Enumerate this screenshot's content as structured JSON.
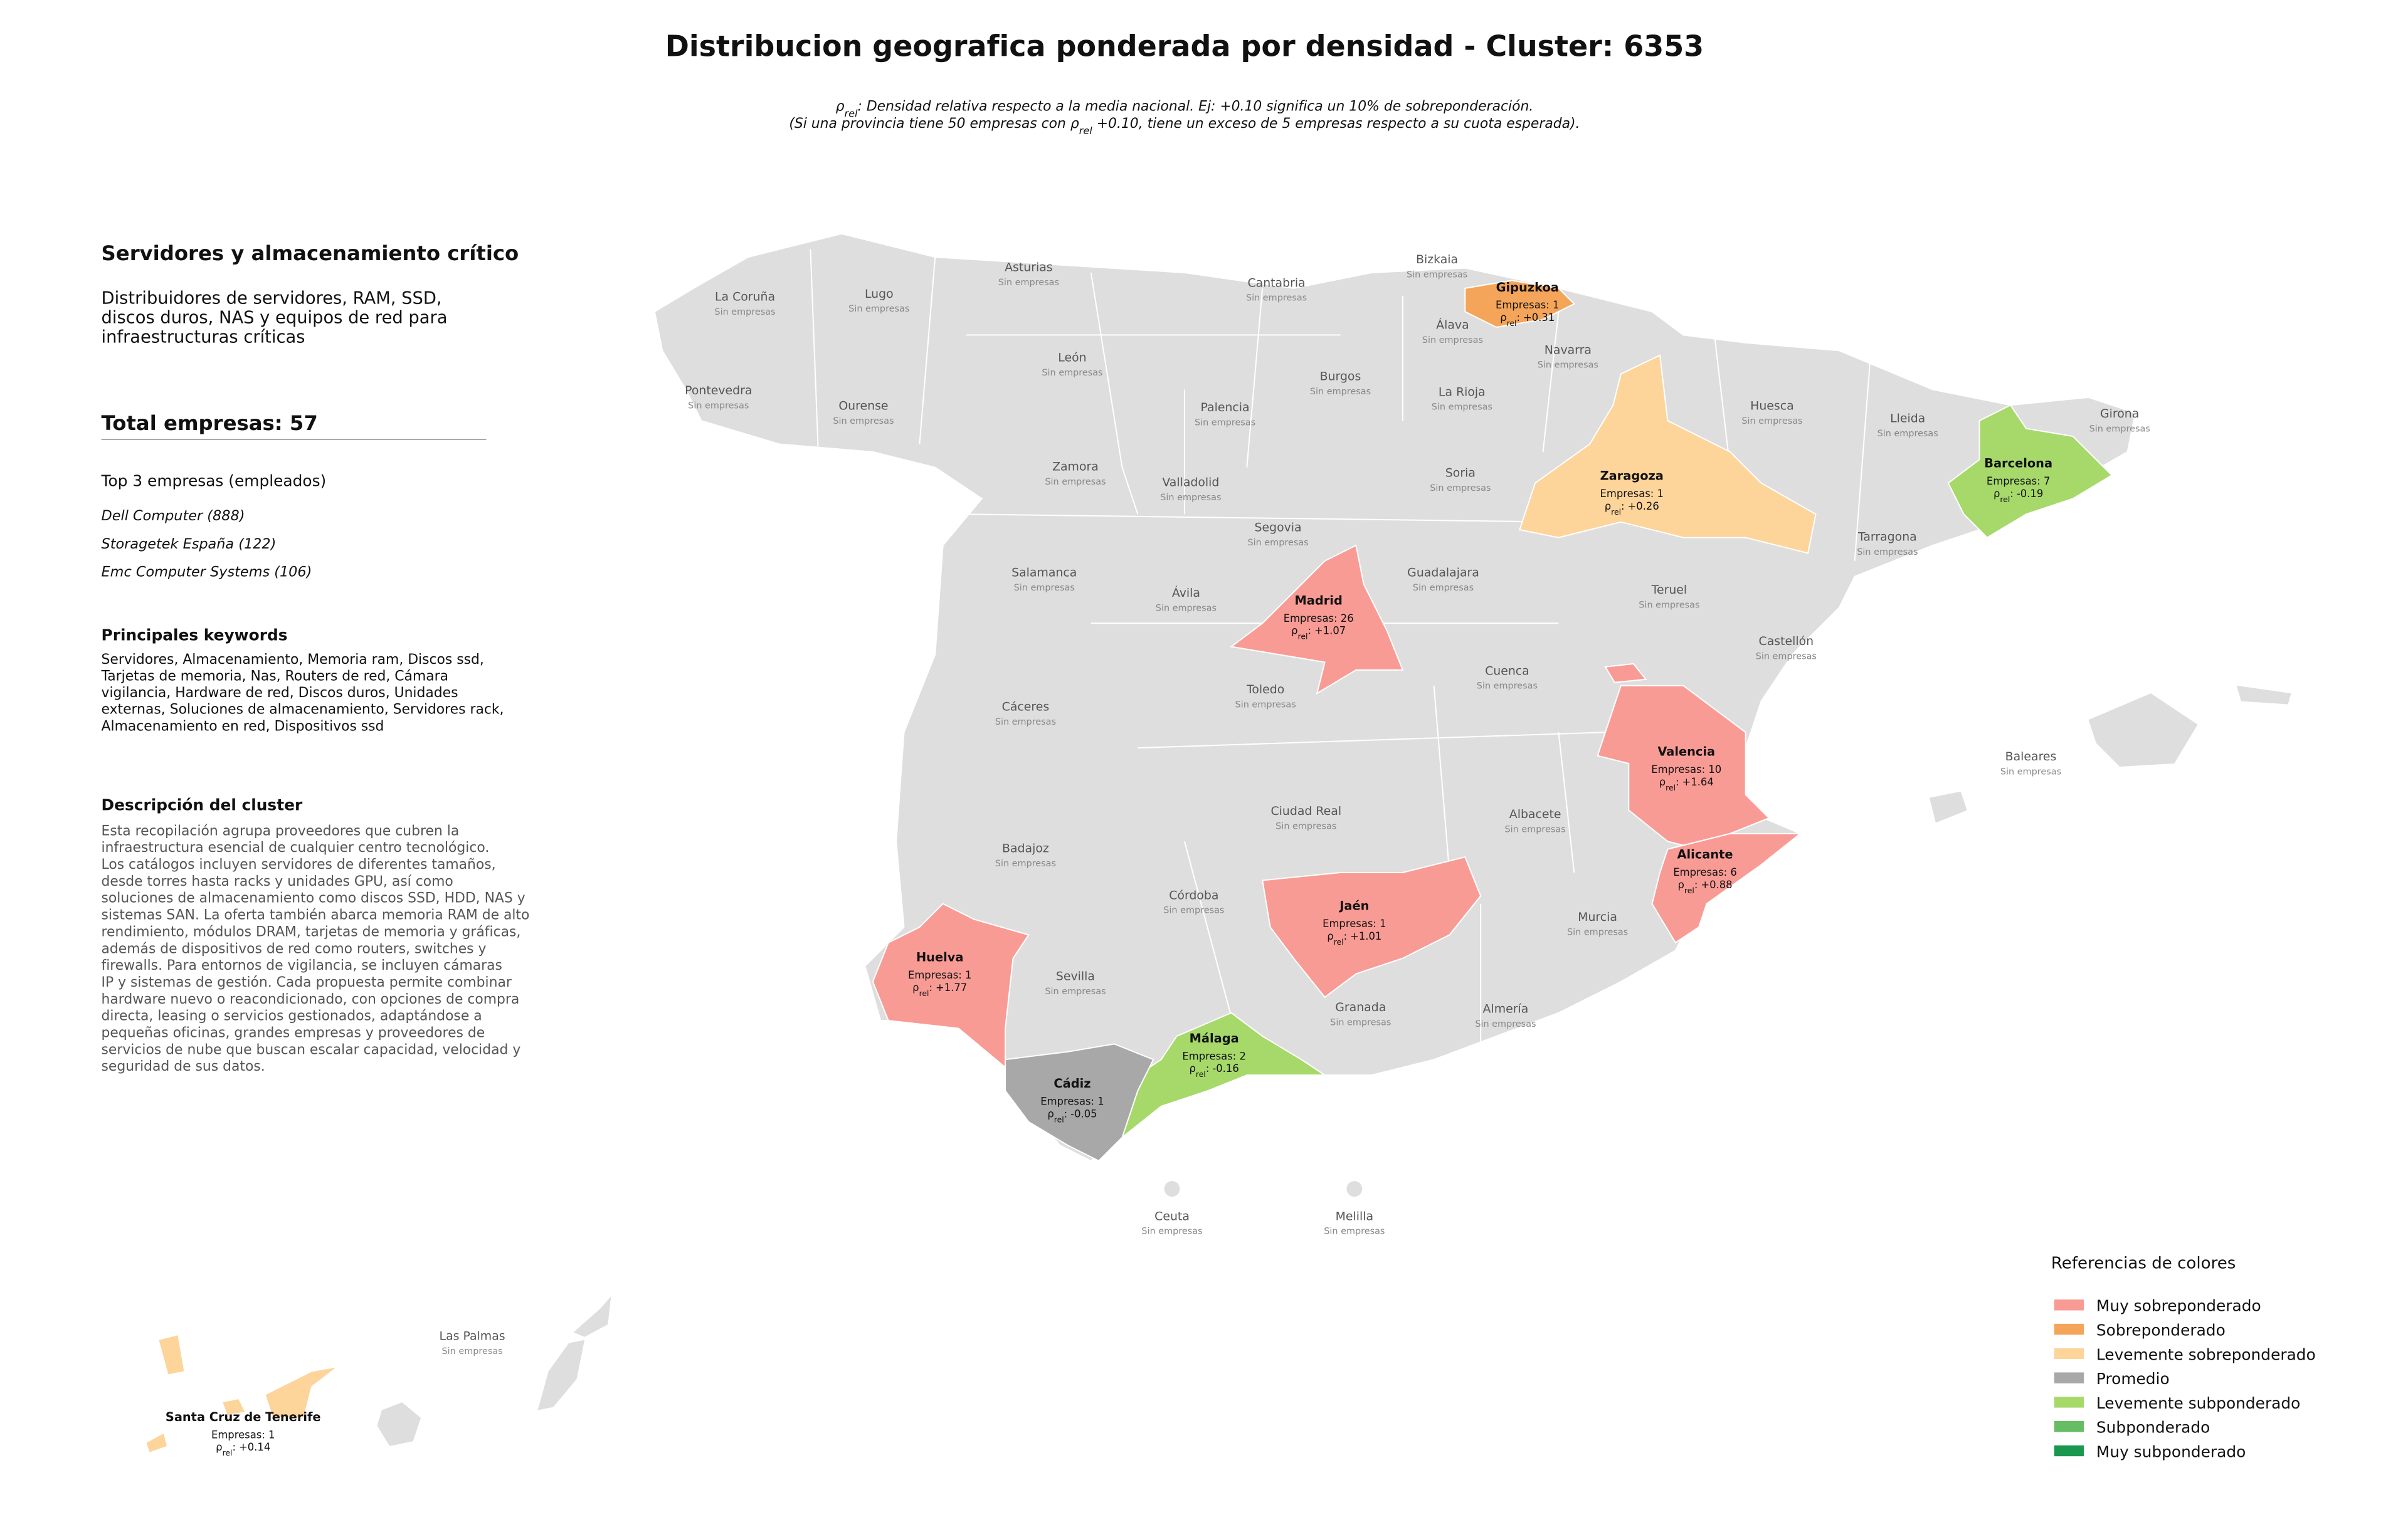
{
  "header": {
    "title": "Distribucion geografica ponderada por densidad - Cluster: 6353",
    "subtitle_1": {
      "symbol": "ρ",
      "subscript": "rel",
      "text": ": Densidad relativa respecto a la media nacional. Ej: +0.10 significa un 10% de sobreponderación."
    },
    "subtitle_2": {
      "before": "(Si una provincia tiene 50 empresas con ",
      "symbol": "ρ",
      "subscript": "rel",
      "after": " +0.10, tiene un exceso de 5 empresas respecto a su cuota esperada)."
    }
  },
  "panel": {
    "title": "Servidores y almacenamiento crítico",
    "subtitle_lines": [
      "Distribuidores de servidores, RAM, SSD,",
      "discos duros, NAS y equipos de red para",
      "infraestructuras críticas"
    ],
    "total_label": "Total empresas: 57",
    "top_heading": "Top 3 empresas (empleados)",
    "top_companies": [
      "Dell Computer (888)",
      "Storagetek España (122)",
      "Emc Computer Systems (106)"
    ],
    "keywords_heading": "Principales keywords",
    "keywords_lines": [
      "Servidores, Almacenamiento, Memoria ram, Discos ssd,",
      "Tarjetas de memoria, Nas, Routers de red, Cámara",
      "vigilancia, Hardware de red, Discos duros, Unidades",
      "externas, Soluciones de almacenamiento, Servidores rack,",
      "Almacenamiento en red, Dispositivos ssd"
    ],
    "description_heading": "Descripción del cluster",
    "description_lines": [
      "Esta recopilación agrupa proveedores que cubren la",
      "infraestructura esencial de cualquier centro tecnológico.",
      "Los catálogos incluyen servidores de diferentes tamaños,",
      "desde torres hasta racks y unidades GPU, así como",
      "soluciones de almacenamiento como discos SSD, HDD, NAS y",
      "sistemas SAN. La oferta también abarca memoria RAM de alto",
      "rendimiento, módulos DRAM, tarjetas de memoria y gráficas,",
      "además de dispositivos de red como routers, switches y",
      "firewalls. Para entornos de vigilancia, se incluyen cámaras",
      "IP y sistemas de gestión. Cada propuesta permite combinar",
      "hardware nuevo o reacondicionado, con opciones de compra",
      "directa, leasing o servicios gestionados, adaptándose a",
      "pequeñas oficinas, grandes empresas y proveedores de",
      "servicios de nube que buscan escalar capacidad, velocidad y",
      "seguridad de sus datos."
    ]
  },
  "map": {
    "empty_label": "Sin empresas",
    "rho_symbol": "ρ",
    "rho_subscript": "rel",
    "rho_separator": ":",
    "highlighted": [
      {
        "name": "Gipuzkoa",
        "count_label": "Empresas: 1",
        "rho": "+0.31",
        "color": "#f5a55a"
      },
      {
        "name": "Zaragoza",
        "count_label": "Empresas: 1",
        "rho": "+0.26",
        "color": "#fdd49a"
      },
      {
        "name": "Barcelona",
        "count_label": "Empresas: 7",
        "rho": "-0.19",
        "color": "#a6d96a"
      },
      {
        "name": "Madrid",
        "count_label": "Empresas: 26",
        "rho": "+1.07",
        "color": "#f99b95"
      },
      {
        "name": "Valencia",
        "count_label": "Empresas: 10",
        "rho": "+1.64",
        "color": "#f99b95"
      },
      {
        "name": "Alicante",
        "count_label": "Empresas: 6",
        "rho": "+0.88",
        "color": "#f99b95"
      },
      {
        "name": "Jaén",
        "count_label": "Empresas: 1",
        "rho": "+1.01",
        "color": "#f99b95"
      },
      {
        "name": "Huelva",
        "count_label": "Empresas: 1",
        "rho": "+1.77",
        "color": "#f99b95"
      },
      {
        "name": "Málaga",
        "count_label": "Empresas: 2",
        "rho": "-0.16",
        "color": "#a6d96a"
      },
      {
        "name": "Cádiz",
        "count_label": "Empresas: 1",
        "rho": "-0.05",
        "color": "#a8a8a8"
      },
      {
        "name": "Santa Cruz de Tenerife",
        "count_label": "Empresas: 1",
        "rho": "+0.14",
        "color": "#fdd49a"
      }
    ],
    "empty_provinces": [
      "La Coruña",
      "Lugo",
      "Asturias",
      "Cantabria",
      "Bizkaia",
      "Álava",
      "Navarra",
      "Pontevedra",
      "Ourense",
      "León",
      "Palencia",
      "Burgos",
      "La Rioja",
      "Huesca",
      "Lleida",
      "Girona",
      "Zamora",
      "Valladolid",
      "Soria",
      "Segovia",
      "Tarragona",
      "Salamanca",
      "Ávila",
      "Guadalajara",
      "Teruel",
      "Cuenca",
      "Castellón",
      "Toledo",
      "Cáceres",
      "Baleares",
      "Ciudad Real",
      "Albacete",
      "Badajoz",
      "Córdoba",
      "Murcia",
      "Sevilla",
      "Granada",
      "Almería",
      "Ceuta",
      "Melilla",
      "Las Palmas"
    ]
  },
  "legend": {
    "title": "Referencias de colores",
    "items": [
      {
        "name": "Muy sobreponderado",
        "color": "#f99b95"
      },
      {
        "name": "Sobreponderado",
        "color": "#f5a55a"
      },
      {
        "name": "Levemente sobreponderado",
        "color": "#fdd49a"
      },
      {
        "name": "Promedio",
        "color": "#a8a8a8"
      },
      {
        "name": "Levemente subponderado",
        "color": "#a6d96a"
      },
      {
        "name": "Subponderado",
        "color": "#66bd63"
      },
      {
        "name": "Muy subponderado",
        "color": "#1a9850"
      }
    ]
  }
}
